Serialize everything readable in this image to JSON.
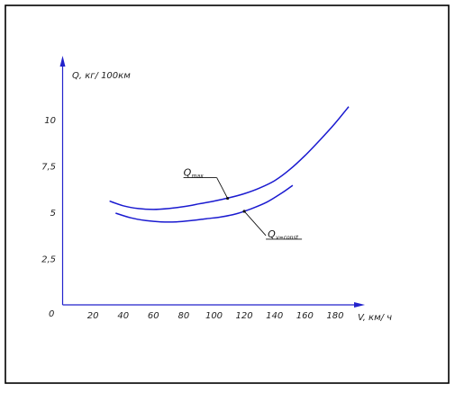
{
  "chart_data": {
    "type": "line",
    "ylabel": "Q, кг/ 100км",
    "xlabel": "V, км/ ч",
    "origin_label": "0",
    "xlim": [
      0,
      200
    ],
    "ylim": [
      0,
      12.5
    ],
    "x_ticks": [
      {
        "value": 20,
        "label": "20"
      },
      {
        "value": 40,
        "label": "40"
      },
      {
        "value": 60,
        "label": "60"
      },
      {
        "value": 80,
        "label": "80"
      },
      {
        "value": 100,
        "label": "100"
      },
      {
        "value": 120,
        "label": "120"
      },
      {
        "value": 140,
        "label": "140"
      },
      {
        "value": 160,
        "label": "160"
      },
      {
        "value": 180,
        "label": "180"
      }
    ],
    "y_ticks": [
      {
        "value": 2.5,
        "label": "2,5"
      },
      {
        "value": 5,
        "label": "5"
      },
      {
        "value": 7.5,
        "label": "7,5"
      },
      {
        "value": 10,
        "label": "10"
      }
    ],
    "series": [
      {
        "name": "Q",
        "subscript": "max",
        "color": "#1a1ad0",
        "points": [
          [
            31,
            5.6
          ],
          [
            40,
            5.35
          ],
          [
            50,
            5.2
          ],
          [
            60,
            5.15
          ],
          [
            70,
            5.2
          ],
          [
            80,
            5.3
          ],
          [
            90,
            5.45
          ],
          [
            100,
            5.6
          ],
          [
            110,
            5.78
          ],
          [
            120,
            6.0
          ],
          [
            130,
            6.3
          ],
          [
            140,
            6.7
          ],
          [
            150,
            7.3
          ],
          [
            160,
            8.05
          ],
          [
            170,
            8.9
          ],
          [
            180,
            9.8
          ],
          [
            189,
            10.7
          ]
        ]
      },
      {
        "name": "Q",
        "subscript": "v=const",
        "color": "#1a1ad0",
        "points": [
          [
            35,
            4.95
          ],
          [
            45,
            4.7
          ],
          [
            55,
            4.55
          ],
          [
            65,
            4.48
          ],
          [
            75,
            4.48
          ],
          [
            85,
            4.55
          ],
          [
            95,
            4.65
          ],
          [
            105,
            4.75
          ],
          [
            115,
            4.92
          ],
          [
            125,
            5.2
          ],
          [
            135,
            5.55
          ],
          [
            145,
            6.05
          ],
          [
            152,
            6.45
          ]
        ]
      }
    ],
    "annotations": [
      {
        "series": 0,
        "text": "Q",
        "sub": "max",
        "anchor": [
          109,
          5.75
        ],
        "dir": "upper-left"
      },
      {
        "series": 1,
        "text": "Q",
        "sub": "v=const",
        "anchor": [
          120,
          5.05
        ],
        "dir": "lower-right"
      }
    ]
  }
}
